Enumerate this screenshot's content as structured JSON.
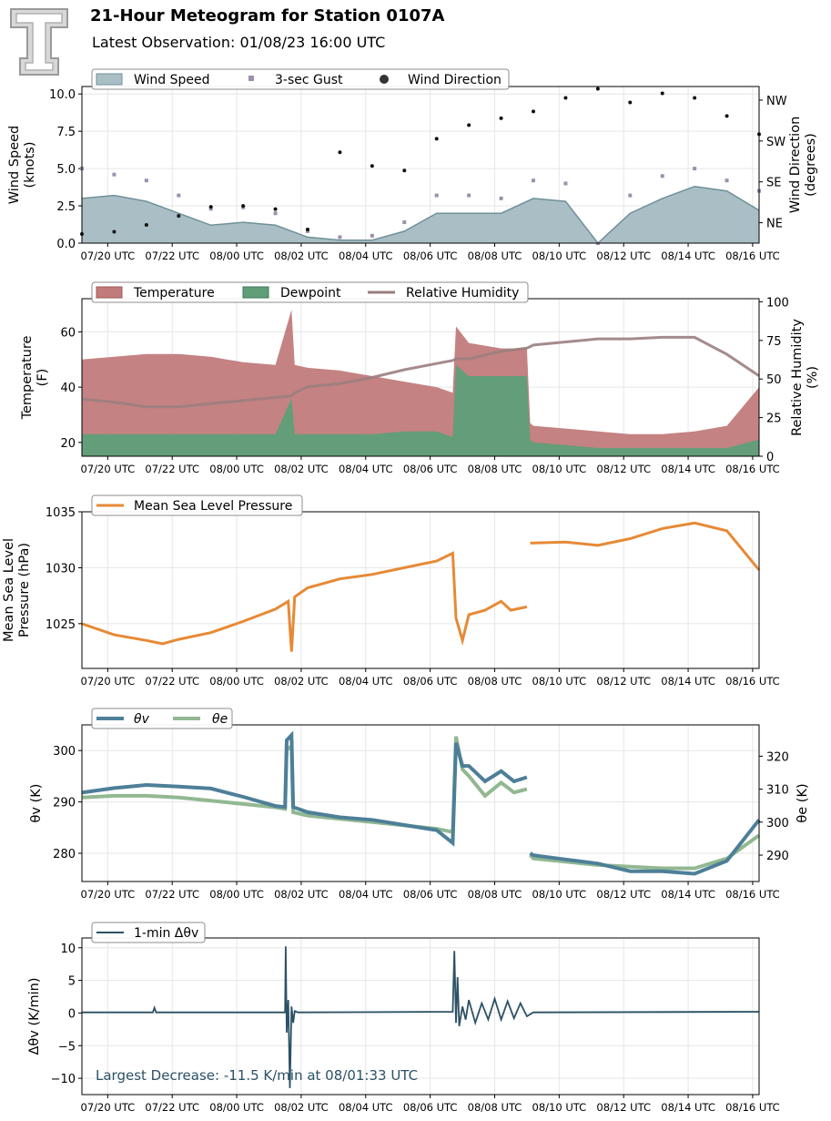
{
  "header": {
    "title": "21-Hour Meteogram for Station 0107A",
    "subtitle": "Latest Observation: 01/08/23 16:00 UTC",
    "logo_letter": "T"
  },
  "time_ticks": [
    "07/20 UTC",
    "07/22 UTC",
    "08/00 UTC",
    "08/02 UTC",
    "08/04 UTC",
    "08/06 UTC",
    "08/08 UTC",
    "08/10 UTC",
    "08/12 UTC",
    "08/14 UTC",
    "08/16 UTC"
  ],
  "colors": {
    "wind_speed_fill": "#a9bfc5",
    "wind_speed_line": "#6f9099",
    "gust": "#9c8fae",
    "direction": "#111111",
    "temperature": "#c27b7b",
    "dewpoint": "#5f9e78",
    "rh": "#9b7e7e",
    "pressure": "#e68a36",
    "theta_v": "#4d7f98",
    "theta_e": "#92b892",
    "dtheta": "#2c5266",
    "annotation": "#2c5266",
    "grid": "#e6e6e6"
  },
  "chart_data": [
    {
      "type": "area",
      "name": "wind",
      "legend": [
        "Wind Speed",
        "3-sec Gust",
        "Wind Direction"
      ],
      "ylabel": [
        "Wind Speed",
        "(knots)"
      ],
      "ylabel_right": [
        "Wind Direction",
        "(degrees)"
      ],
      "ylim": [
        0,
        10.5
      ],
      "yticks": [
        "0.0",
        "2.5",
        "5.0",
        "7.5",
        "10.0"
      ],
      "ytick_values": [
        0,
        2.5,
        5,
        7.5,
        10
      ],
      "right_ticks": [
        "NE",
        "SE",
        "SW",
        "NW"
      ],
      "right_tick_values": [
        45,
        135,
        225,
        315
      ],
      "right_ylim": [
        0,
        345
      ],
      "x_hours": [
        0,
        1,
        2,
        3,
        4,
        5,
        6,
        7,
        8,
        9,
        10,
        11,
        12,
        13,
        14,
        15,
        16,
        17,
        18,
        19,
        20,
        21
      ],
      "speed": [
        3.0,
        3.2,
        2.8,
        2.0,
        1.2,
        1.4,
        1.2,
        0.4,
        0.2,
        0.2,
        0.8,
        2.0,
        2.0,
        2.0,
        3.0,
        2.8,
        0.0,
        2.0,
        3.0,
        3.8,
        3.5,
        2.2
      ],
      "gust": [
        5.0,
        4.6,
        4.2,
        3.2,
        2.3,
        2.4,
        2.0,
        0.8,
        0.4,
        0.5,
        1.4,
        3.2,
        3.2,
        3.0,
        4.2,
        4.0,
        0.0,
        3.2,
        4.5,
        5.0,
        4.2,
        3.5
      ],
      "direction": [
        20,
        25,
        40,
        60,
        80,
        82,
        75,
        30,
        200,
        170,
        160,
        230,
        260,
        275,
        290,
        320,
        340,
        310,
        330,
        320,
        280,
        240
      ]
    },
    {
      "type": "area",
      "name": "temperature",
      "legend": [
        "Temperature",
        "Dewpoint",
        "Relative Humidity"
      ],
      "ylabel": [
        "Temperature",
        "(F)"
      ],
      "ylabel_right": [
        "Relative Humidity",
        "(%)"
      ],
      "ylim": [
        15,
        72
      ],
      "yticks": [
        "20",
        "40",
        "60"
      ],
      "ytick_values": [
        20,
        40,
        60
      ],
      "right_ylim": [
        0,
        102
      ],
      "right_ticks": [
        "0",
        "25",
        "50",
        "75",
        "100"
      ],
      "right_tick_values": [
        0,
        25,
        50,
        75,
        100
      ],
      "x_hours": [
        0,
        1,
        2,
        3,
        4,
        5,
        6,
        6.5,
        6.6,
        7,
        8,
        9,
        10,
        11,
        11.5,
        11.6,
        12,
        13,
        13.8,
        13.9,
        14,
        15,
        16,
        17,
        18,
        19,
        20,
        21
      ],
      "temperature": [
        50,
        51,
        52,
        52,
        51,
        49,
        48,
        68,
        48,
        47,
        46,
        44,
        42,
        40,
        38,
        62,
        56,
        54,
        54,
        27,
        26,
        25,
        24,
        23,
        23,
        24,
        26,
        40
      ],
      "dewpoint": [
        23,
        23,
        23,
        23,
        23,
        23,
        23,
        36,
        23,
        23,
        23,
        23,
        24,
        24,
        22,
        48,
        44,
        44,
        44,
        21,
        20,
        19,
        18,
        18,
        18,
        18,
        18,
        21
      ],
      "rh": [
        37,
        35,
        32,
        32,
        34,
        36,
        38,
        39,
        41,
        45,
        47,
        51,
        56,
        60,
        62,
        63,
        63,
        68,
        70,
        71,
        72,
        74,
        76,
        76,
        77,
        77,
        66,
        52
      ]
    },
    {
      "type": "line",
      "name": "pressure",
      "legend": [
        "Mean Sea Level Pressure"
      ],
      "ylabel": [
        "Mean Sea Level",
        "Pressure (hPa)"
      ],
      "ylim": [
        1021,
        1035
      ],
      "yticks": [
        "1025",
        "1030",
        "1035"
      ],
      "ytick_values": [
        1025,
        1030,
        1035
      ],
      "segments": [
        {
          "x": [
            0,
            1,
            2,
            2.5,
            3,
            4,
            5,
            6,
            6.4,
            6.5,
            6.6,
            6.7,
            7,
            8,
            9,
            10,
            11,
            11.5,
            11.6,
            11.8,
            12,
            12.5,
            13,
            13.3,
            13.8
          ],
          "y": [
            1025.0,
            1024.0,
            1023.5,
            1023.2,
            1023.6,
            1024.2,
            1025.2,
            1026.3,
            1027.0,
            1022.5,
            1027.4,
            1027.6,
            1028.2,
            1029.0,
            1029.4,
            1030.0,
            1030.6,
            1031.3,
            1025.5,
            1023.5,
            1025.8,
            1026.2,
            1027.0,
            1026.2,
            1026.5
          ]
        },
        {
          "x": [
            13.9,
            15,
            16,
            17,
            18,
            19,
            20,
            21
          ],
          "y": [
            1032.2,
            1032.3,
            1032.0,
            1032.6,
            1033.5,
            1034.0,
            1033.3,
            1029.8
          ]
        }
      ]
    },
    {
      "type": "line",
      "name": "theta",
      "legend": [
        "θv",
        "θe"
      ],
      "ylabel": "θv (K)",
      "ylabel_right": "θe (K)",
      "ylim": [
        274.5,
        305
      ],
      "yticks": [
        "280",
        "290",
        "300"
      ],
      "ytick_values": [
        280,
        290,
        300
      ],
      "right_ylim": [
        282,
        329.5
      ],
      "right_ticks": [
        "290",
        "300",
        "310",
        "320"
      ],
      "right_tick_values": [
        290,
        300,
        310,
        320
      ],
      "theta_v": [
        {
          "x": [
            0,
            1,
            2,
            3,
            4,
            5,
            6,
            6.3,
            6.35,
            6.5,
            6.55,
            7,
            8,
            9,
            10,
            11,
            11.5,
            11.6,
            11.8,
            12,
            12.5,
            13,
            13.4,
            13.8
          ],
          "y": [
            291.8,
            292.7,
            293.3,
            293.0,
            292.6,
            291.0,
            289.2,
            289.0,
            302.0,
            303.0,
            289.0,
            288.0,
            287.0,
            286.5,
            285.5,
            284.5,
            282.0,
            301.5,
            297.0,
            297.0,
            294.0,
            296.0,
            294.0,
            294.8
          ]
        },
        {
          "x": [
            13.9,
            14,
            15,
            16,
            17,
            18,
            19,
            20,
            21
          ],
          "y": [
            280.0,
            279.6,
            278.8,
            278.0,
            276.5,
            276.5,
            276.0,
            278.5,
            286.5
          ]
        }
      ],
      "theta_e": [
        {
          "x": [
            0,
            1,
            2,
            3,
            4,
            5,
            6,
            6.3,
            6.35,
            6.5,
            6.55,
            7,
            8,
            9,
            10,
            11,
            11.5,
            11.6,
            11.8,
            12,
            12.5,
            13,
            13.4,
            13.8
          ],
          "y": [
            307.5,
            308.0,
            308.0,
            307.5,
            306.5,
            305.5,
            304.5,
            304.0,
            322.0,
            323.0,
            303.0,
            302.0,
            301.0,
            300.0,
            299.0,
            298.0,
            297.0,
            326.0,
            316.0,
            314.0,
            308.0,
            312.0,
            309.0,
            310.0
          ]
        },
        {
          "x": [
            13.9,
            14,
            15,
            16,
            17,
            18,
            19,
            20,
            21
          ],
          "y": [
            290.0,
            289.0,
            288.0,
            287.0,
            286.5,
            286.0,
            286.0,
            289.0,
            296.0
          ]
        }
      ]
    },
    {
      "type": "line",
      "name": "delta_theta",
      "legend": [
        "1-min Δθv"
      ],
      "ylabel": "Δθv (K/min)",
      "ylim": [
        -12.5,
        11.5
      ],
      "yticks": [
        "−10",
        "−5",
        "0",
        "5",
        "10"
      ],
      "ytick_values": [
        -10,
        -5,
        0,
        5,
        10
      ],
      "x": [
        0,
        2.2,
        2.25,
        2.3,
        6.3,
        6.32,
        6.35,
        6.4,
        6.45,
        6.5,
        6.55,
        6.6,
        6.7,
        11.5,
        11.55,
        11.6,
        11.65,
        11.7,
        11.8,
        11.9,
        12.0,
        12.2,
        12.4,
        12.6,
        12.8,
        13.0,
        13.2,
        13.4,
        13.6,
        13.8,
        14,
        21
      ],
      "y": [
        0.1,
        0.1,
        0.8,
        0.1,
        0.1,
        10.2,
        -3.0,
        2.0,
        -11.5,
        1.0,
        -1.5,
        0.3,
        0.1,
        0.2,
        9.5,
        -1.5,
        5.5,
        -2.0,
        1.0,
        -1.0,
        2.0,
        -1.5,
        1.5,
        -1.0,
        2.2,
        -1.0,
        1.8,
        -0.8,
        1.5,
        -0.5,
        0.1,
        0.2
      ],
      "annotation": "Largest Decrease: -11.5 K/min at 08/01:33 UTC"
    }
  ]
}
